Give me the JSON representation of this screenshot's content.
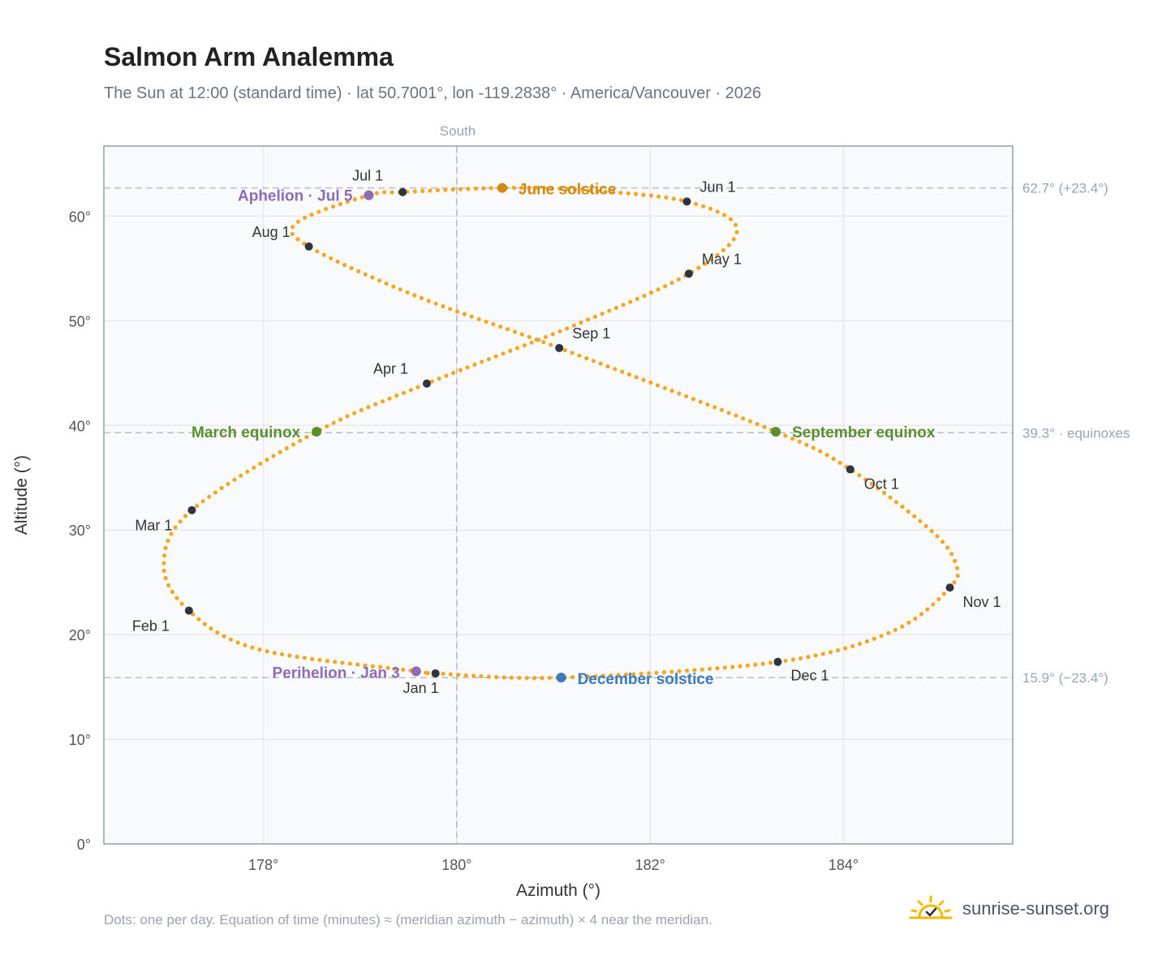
{
  "header": {
    "title": "Salmon Arm Analemma",
    "subtitle": "The Sun at 12:00 (standard time) · lat 50.7001°, lon -119.2838° · America/Vancouver · 2026"
  },
  "footer": {
    "note": "Dots: one per day. Equation of time (minutes) ≈ (meridian azimuth − azimuth) × 4 near the meridian.",
    "brand": "sunrise-sunset.org",
    "brand_icon": "sun-horizon-check-icon"
  },
  "colors": {
    "curve": "#f5a623",
    "month_dot": "#2d3440",
    "solstice_june": "#d4890f",
    "solstice_december": "#3a7abd",
    "equinox": "#5a8f2c",
    "apsis": "#8e6bb5",
    "grid": "#e5e9ee",
    "ref_line": "#b5bec9",
    "plot_bg": "#f8fafc",
    "frame": "#9aa5b4"
  },
  "chart_data": {
    "type": "scatter",
    "xlabel": "Azimuth (°)",
    "ylabel": "Altitude (°)",
    "xlim": [
      176.35,
      185.75
    ],
    "ylim": [
      0,
      66.7
    ],
    "xticks": [
      178,
      180,
      182,
      184
    ],
    "xtick_labels": [
      "178°",
      "180°",
      "182°",
      "184°"
    ],
    "yticks": [
      0,
      10,
      20,
      30,
      40,
      50,
      60
    ],
    "ytick_labels": [
      "0°",
      "10°",
      "20°",
      "30°",
      "40°",
      "50°",
      "60°"
    ],
    "grid": true,
    "meridian": {
      "x": 180,
      "label": "South"
    },
    "reference_lines": [
      {
        "y": 62.7,
        "label": "62.7° (+23.4°)"
      },
      {
        "y": 39.3,
        "label": "39.3° · equinoxes"
      },
      {
        "y": 15.9,
        "label": "15.9° (−23.4°)"
      }
    ],
    "path_months": [
      {
        "label": "Jan 1",
        "x": 179.78,
        "y": 16.3
      },
      {
        "label": "Feb 1",
        "x": 177.23,
        "y": 22.3
      },
      {
        "label": "Mar 1",
        "x": 177.26,
        "y": 31.9
      },
      {
        "label": "Apr 1",
        "x": 179.69,
        "y": 44.0
      },
      {
        "label": "May 1",
        "x": 182.4,
        "y": 54.5
      },
      {
        "label": "Jun 1",
        "x": 182.38,
        "y": 61.4
      },
      {
        "label": "Jul 1",
        "x": 179.44,
        "y": 62.3
      },
      {
        "label": "Aug 1",
        "x": 178.47,
        "y": 57.1
      },
      {
        "label": "Sep 1",
        "x": 181.06,
        "y": 47.4
      },
      {
        "label": "Oct 1",
        "x": 184.07,
        "y": 35.8
      },
      {
        "label": "Nov 1",
        "x": 185.1,
        "y": 24.5
      },
      {
        "label": "Dec 1",
        "x": 183.32,
        "y": 17.4
      }
    ],
    "events": [
      {
        "label": "June solstice",
        "x": 180.47,
        "y": 62.7,
        "color_key": "solstice_june"
      },
      {
        "label": "December solstice",
        "x": 181.08,
        "y": 15.9,
        "color_key": "solstice_december"
      },
      {
        "label": "March equinox",
        "x": 178.55,
        "y": 39.4,
        "color_key": "equinox"
      },
      {
        "label": "September equinox",
        "x": 183.3,
        "y": 39.4,
        "color_key": "equinox"
      },
      {
        "label": "Aphelion · Jul 5",
        "x": 179.09,
        "y": 62.0,
        "color_key": "apsis"
      },
      {
        "label": "Perihelion · Jan 3",
        "x": 179.58,
        "y": 16.5,
        "color_key": "apsis"
      }
    ],
    "key_points": [
      {
        "x": 179.78,
        "y": 16.3
      },
      {
        "x": 179.58,
        "y": 16.5
      },
      {
        "x": 177.95,
        "y": 18.6
      },
      {
        "x": 177.23,
        "y": 22.3
      },
      {
        "x": 176.97,
        "y": 26.7
      },
      {
        "x": 177.26,
        "y": 31.9
      },
      {
        "x": 178.55,
        "y": 39.4
      },
      {
        "x": 179.69,
        "y": 44.0
      },
      {
        "x": 181.2,
        "y": 49.5
      },
      {
        "x": 182.4,
        "y": 54.5
      },
      {
        "x": 182.9,
        "y": 58.7
      },
      {
        "x": 182.38,
        "y": 61.4
      },
      {
        "x": 181.3,
        "y": 62.5
      },
      {
        "x": 180.47,
        "y": 62.7
      },
      {
        "x": 179.44,
        "y": 62.3
      },
      {
        "x": 179.09,
        "y": 62.0
      },
      {
        "x": 178.35,
        "y": 59.4
      },
      {
        "x": 178.47,
        "y": 57.1
      },
      {
        "x": 179.6,
        "y": 52.3
      },
      {
        "x": 181.06,
        "y": 47.4
      },
      {
        "x": 183.3,
        "y": 39.4
      },
      {
        "x": 184.07,
        "y": 35.8
      },
      {
        "x": 184.9,
        "y": 30.0
      },
      {
        "x": 185.16,
        "y": 26.8
      },
      {
        "x": 185.1,
        "y": 24.5
      },
      {
        "x": 184.5,
        "y": 20.3
      },
      {
        "x": 183.32,
        "y": 17.4
      },
      {
        "x": 181.08,
        "y": 15.9
      },
      {
        "x": 179.78,
        "y": 16.3
      }
    ]
  }
}
